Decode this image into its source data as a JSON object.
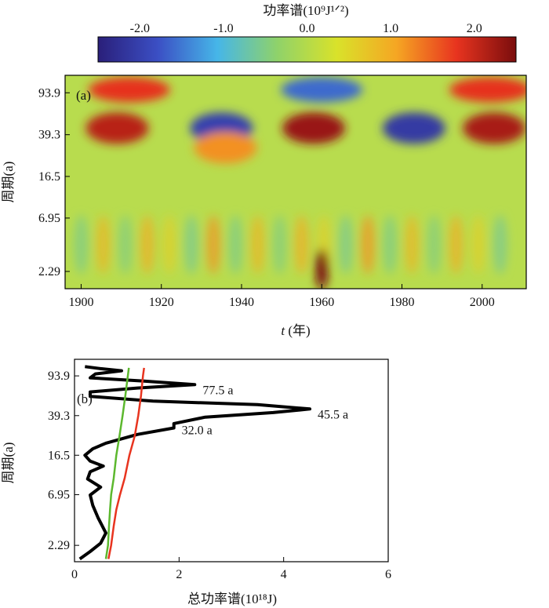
{
  "colorbar": {
    "title": "功率谱(10⁹J¹ᐟ²)",
    "ticks": [
      "-2.0",
      "-1.0",
      "0.0",
      "1.0",
      "2.0"
    ],
    "tick_values": [
      -2.0,
      -1.0,
      0.0,
      1.0,
      2.0
    ],
    "range": [
      -2.5,
      2.5
    ],
    "colors": [
      "#2a1f7a",
      "#3b4fc4",
      "#46b6e8",
      "#8fd26a",
      "#d9e22a",
      "#f5a623",
      "#e8341f",
      "#7a0d0d"
    ]
  },
  "panel_a": {
    "label": "(a)",
    "ylabel": "周期(a)",
    "xlabel_italic": "t",
    "xlabel_rest": " (年)",
    "xticks": [
      "1900",
      "1920",
      "1940",
      "1960",
      "1980",
      "2000"
    ],
    "yticks": [
      "93.9",
      "39.3",
      "16.5",
      "6.95",
      "2.29"
    ]
  },
  "panel_b": {
    "label": "(b)",
    "ylabel": "周期(a)",
    "xlabel": "总功率谱(10¹⁸J)",
    "xticks": [
      "0",
      "2",
      "4",
      "6"
    ],
    "yticks": [
      "93.9",
      "39.3",
      "16.5",
      "6.95",
      "2.29"
    ],
    "annotations": [
      "77.5 a",
      "45.5 a",
      "32.0 a"
    ]
  },
  "chart_data": [
    {
      "type": "heatmap",
      "title": "(a)",
      "xlabel": "t (年)",
      "ylabel": "周期(a)",
      "xlim": [
        1896,
        2011
      ],
      "y_scale": "log",
      "ylim": [
        1.6,
        135
      ],
      "x_ticks": [
        1900,
        1920,
        1940,
        1960,
        1980,
        2000
      ],
      "y_ticks": [
        93.9,
        39.3,
        16.5,
        6.95,
        2.29
      ],
      "colorbar_label": "功率谱(10⁹J¹ᐟ²)",
      "colorbar_range": [
        -2.5,
        2.5
      ],
      "features": [
        {
          "t": 1909,
          "period": 45,
          "value": 2.1
        },
        {
          "t": 1912,
          "period": 100,
          "value": 1.8
        },
        {
          "t": 1935,
          "period": 45,
          "value": -2.0
        },
        {
          "t": 1936,
          "period": 30,
          "value": 1.2
        },
        {
          "t": 1958,
          "period": 45,
          "value": 2.3
        },
        {
          "t": 1960,
          "period": 100,
          "value": -1.6
        },
        {
          "t": 1960,
          "period": 2.4,
          "value": 2.5
        },
        {
          "t": 1983,
          "period": 45,
          "value": -2.1
        },
        {
          "t": 2003,
          "period": 45,
          "value": 2.2
        },
        {
          "t": 2002,
          "period": 100,
          "value": 1.8
        }
      ]
    },
    {
      "type": "line",
      "title": "(b)",
      "xlabel": "总功率谱(10¹⁸J)",
      "ylabel": "周期(a)",
      "xlim": [
        0,
        6
      ],
      "y_scale": "log",
      "ylim": [
        1.6,
        135
      ],
      "x_ticks": [
        0,
        2,
        4,
        6
      ],
      "y_ticks": [
        93.9,
        39.3,
        16.5,
        6.95,
        2.29
      ],
      "series": [
        {
          "color": "#000000",
          "points": [
            [
              0.1,
              1.7
            ],
            [
              0.3,
              2.0
            ],
            [
              0.5,
              2.4
            ],
            [
              0.6,
              3.0
            ],
            [
              0.45,
              4.2
            ],
            [
              0.35,
              5.5
            ],
            [
              0.3,
              6.9
            ],
            [
              0.5,
              8.2
            ],
            [
              0.25,
              9.8
            ],
            [
              0.3,
              11.5
            ],
            [
              0.55,
              13.0
            ],
            [
              0.3,
              14.5
            ],
            [
              0.2,
              16.5
            ],
            [
              0.35,
              19.0
            ],
            [
              0.6,
              21.5
            ],
            [
              1.2,
              26.0
            ],
            [
              1.9,
              30.0
            ],
            [
              1.9,
              33.0
            ],
            [
              2.5,
              38.0
            ],
            [
              3.8,
              42.0
            ],
            [
              4.5,
              45.5
            ],
            [
              3.5,
              50.0
            ],
            [
              1.5,
              54.0
            ],
            [
              0.3,
              60.0
            ],
            [
              0.3,
              66.0
            ],
            [
              1.2,
              72.0
            ],
            [
              2.3,
              77.5
            ],
            [
              1.3,
              84.0
            ],
            [
              0.3,
              90.0
            ],
            [
              0.4,
              98.0
            ],
            [
              0.9,
              105.0
            ],
            [
              0.5,
              110.0
            ],
            [
              0.2,
              115.0
            ]
          ]
        },
        {
          "color": "#e8341f",
          "points": [
            [
              0.65,
              1.7
            ],
            [
              0.7,
              2.29
            ],
            [
              0.75,
              3.5
            ],
            [
              0.8,
              5.0
            ],
            [
              0.87,
              6.95
            ],
            [
              0.96,
              10.0
            ],
            [
              1.05,
              16.5
            ],
            [
              1.15,
              25.0
            ],
            [
              1.22,
              39.3
            ],
            [
              1.27,
              60.0
            ],
            [
              1.31,
              93.9
            ],
            [
              1.33,
              112.0
            ]
          ]
        },
        {
          "color": "#5cb82e",
          "points": [
            [
              0.6,
              1.7
            ],
            [
              0.64,
              2.29
            ],
            [
              0.66,
              3.5
            ],
            [
              0.68,
              5.0
            ],
            [
              0.7,
              6.95
            ],
            [
              0.75,
              10.0
            ],
            [
              0.8,
              16.5
            ],
            [
              0.86,
              25.0
            ],
            [
              0.92,
              39.3
            ],
            [
              0.97,
              60.0
            ],
            [
              1.02,
              93.9
            ],
            [
              1.04,
              112.0
            ]
          ]
        }
      ],
      "annotations": [
        {
          "text": "77.5 a",
          "x": 2.3,
          "y": 77.5
        },
        {
          "text": "45.5 a",
          "x": 4.5,
          "y": 45.5
        },
        {
          "text": "32.0 a",
          "x": 1.9,
          "y": 32.0
        }
      ]
    }
  ]
}
